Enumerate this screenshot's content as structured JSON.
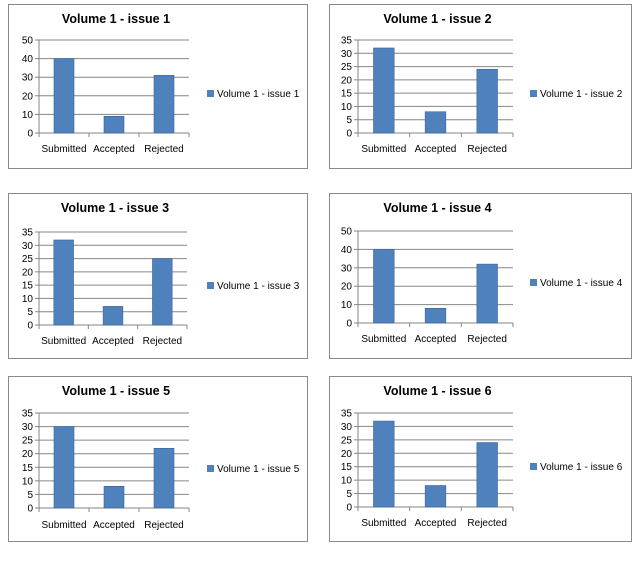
{
  "chart_data": [
    {
      "type": "bar",
      "title": "Volume 1 - issue 1",
      "categories": [
        "Submitted",
        "Accepted",
        "Rejected"
      ],
      "series": [
        {
          "name": "Volume 1 - issue 1",
          "values": [
            40,
            9,
            31
          ]
        }
      ],
      "ylim": [
        0,
        50
      ],
      "ytick_step": 10,
      "grid": true,
      "legend": "right",
      "bar_color": "#4f81bd"
    },
    {
      "type": "bar",
      "title": "Volume 1 - issue 2",
      "categories": [
        "Submitted",
        "Accepted",
        "Rejected"
      ],
      "series": [
        {
          "name": "Volume 1 - issue 2",
          "values": [
            32,
            8,
            24
          ]
        }
      ],
      "ylim": [
        0,
        35
      ],
      "ytick_step": 5,
      "grid": true,
      "legend": "right",
      "bar_color": "#4f81bd"
    },
    {
      "type": "bar",
      "title": "Volume 1 - issue 3",
      "categories": [
        "Submitted",
        "Accepted",
        "Rejected"
      ],
      "series": [
        {
          "name": "Volume 1 - issue 3",
          "values": [
            32,
            7,
            25
          ]
        }
      ],
      "ylim": [
        0,
        35
      ],
      "ytick_step": 5,
      "grid": true,
      "legend": "right",
      "bar_color": "#4f81bd"
    },
    {
      "type": "bar",
      "title": "Volume 1 - issue 4",
      "categories": [
        "Submitted",
        "Accepted",
        "Rejected"
      ],
      "series": [
        {
          "name": "Volume 1 - issue 4",
          "values": [
            40,
            8,
            32
          ]
        }
      ],
      "ylim": [
        0,
        50
      ],
      "ytick_step": 10,
      "grid": true,
      "legend": "right",
      "bar_color": "#4f81bd"
    },
    {
      "type": "bar",
      "title": "Volume 1 - issue 5",
      "categories": [
        "Submitted",
        "Accepted",
        "Rejected"
      ],
      "series": [
        {
          "name": "Volume 1 - issue 5",
          "values": [
            30,
            8,
            22
          ]
        }
      ],
      "ylim": [
        0,
        35
      ],
      "ytick_step": 5,
      "grid": true,
      "legend": "right",
      "bar_color": "#4f81bd"
    },
    {
      "type": "bar",
      "title": "Volume 1 - issue 6",
      "categories": [
        "Submitted",
        "Accepted",
        "Rejected"
      ],
      "series": [
        {
          "name": "Volume 1 - issue 6",
          "values": [
            32,
            8,
            24
          ]
        }
      ],
      "ylim": [
        0,
        35
      ],
      "ytick_step": 5,
      "grid": true,
      "legend": "right",
      "bar_color": "#4f81bd"
    }
  ]
}
